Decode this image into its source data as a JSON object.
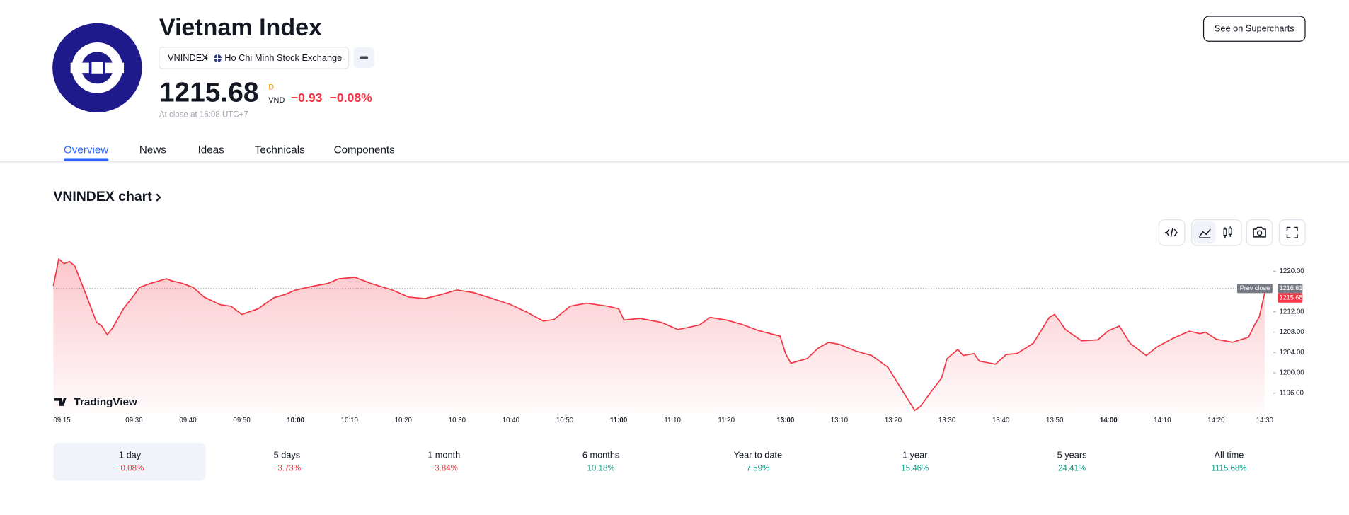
{
  "header": {
    "title": "Vietnam Index",
    "symbol": "VNINDEX",
    "exchange": "Ho Chi Minh Stock Exchange",
    "price": 1215.68,
    "interval": "D",
    "currency": "VND",
    "change": "−0.93",
    "change_percent": "−0.08%",
    "status": "At close at 16:08 UTC+7",
    "button": "See on Supercharts"
  },
  "tabs": [
    "Overview",
    "News",
    "Ideas",
    "Technicals",
    "Components"
  ],
  "chart_heading": "VNINDEX chart",
  "brand": "TradingView",
  "chart_data": {
    "type": "line",
    "color": "#f23645",
    "x": [
      0,
      1,
      2,
      3,
      4,
      6,
      8,
      9,
      10,
      11,
      13,
      15,
      16,
      18,
      21,
      22,
      24,
      26,
      28,
      31,
      33,
      35,
      38,
      41,
      43,
      45,
      48,
      51,
      53,
      56,
      59,
      63,
      66,
      69,
      72,
      75,
      78,
      81,
      85,
      88,
      91,
      93,
      96,
      99,
      103,
      105,
      106,
      109,
      113,
      116,
      120,
      122,
      125,
      128,
      131,
      135,
      136,
      137,
      140,
      142,
      144,
      146,
      149,
      152,
      155,
      158,
      160,
      161,
      163,
      165,
      166,
      168,
      169,
      171,
      172,
      175,
      177,
      179,
      182,
      185,
      186,
      188,
      191,
      194,
      196,
      198,
      200,
      203,
      205,
      208,
      211,
      213,
      214,
      216,
      219,
      222,
      223,
      224,
      225
    ],
    "values": [
      1217.1,
      1222.4,
      1221.5,
      1221.9,
      1221.0,
      1215.6,
      1210.0,
      1209.2,
      1207.5,
      1208.8,
      1212.6,
      1215.3,
      1216.8,
      1217.6,
      1218.5,
      1218.1,
      1217.6,
      1216.8,
      1214.9,
      1213.4,
      1213.1,
      1211.5,
      1212.6,
      1214.8,
      1215.4,
      1216.3,
      1217.0,
      1217.6,
      1218.5,
      1218.8,
      1217.6,
      1216.3,
      1214.9,
      1214.6,
      1215.4,
      1216.3,
      1215.8,
      1214.8,
      1213.4,
      1211.9,
      1210.2,
      1210.5,
      1213.1,
      1213.7,
      1213.1,
      1212.6,
      1210.4,
      1210.7,
      1209.9,
      1208.5,
      1209.4,
      1210.9,
      1210.4,
      1209.5,
      1208.3,
      1207.2,
      1203.8,
      1201.9,
      1202.8,
      1204.8,
      1206.0,
      1205.6,
      1204.3,
      1203.4,
      1201.1,
      1196.0,
      1192.6,
      1193.3,
      1196.2,
      1199.0,
      1202.8,
      1204.6,
      1203.4,
      1203.8,
      1202.3,
      1201.7,
      1203.6,
      1203.8,
      1205.8,
      1210.9,
      1211.5,
      1208.5,
      1206.3,
      1206.5,
      1208.3,
      1209.2,
      1205.8,
      1203.4,
      1205.1,
      1206.8,
      1208.2,
      1207.7,
      1208.0,
      1206.6,
      1206.0,
      1207.0,
      1209.2,
      1211.0,
      1215.68
    ],
    "xlim": [
      0,
      225
    ],
    "xticks": [
      {
        "value": 0,
        "label": "09:15"
      },
      {
        "value": 15,
        "label": "09:30"
      },
      {
        "value": 25,
        "label": "09:40"
      },
      {
        "value": 35,
        "label": "09:50"
      },
      {
        "value": 45,
        "label": "10:00"
      },
      {
        "value": 55,
        "label": "10:10"
      },
      {
        "value": 65,
        "label": "10:20"
      },
      {
        "value": 75,
        "label": "10:30"
      },
      {
        "value": 85,
        "label": "10:40"
      },
      {
        "value": 95,
        "label": "10:50"
      },
      {
        "value": 105,
        "label": "11:00"
      },
      {
        "value": 115,
        "label": "11:10"
      },
      {
        "value": 125,
        "label": "11:20"
      },
      {
        "value": 136,
        "label": "13:00"
      },
      {
        "value": 146,
        "label": "13:10"
      },
      {
        "value": 156,
        "label": "13:20"
      },
      {
        "value": 166,
        "label": "13:30"
      },
      {
        "value": 176,
        "label": "13:40"
      },
      {
        "value": 186,
        "label": "13:50"
      },
      {
        "value": 196,
        "label": "14:00"
      },
      {
        "value": 206,
        "label": "14:10"
      },
      {
        "value": 216,
        "label": "14:20"
      },
      {
        "value": 225,
        "label": "14:30"
      }
    ],
    "ylim": [
      1192,
      1223
    ],
    "yticks": [
      {
        "value": 1196,
        "label": "1196.00"
      },
      {
        "value": 1200,
        "label": "1200.00"
      },
      {
        "value": 1204,
        "label": "1204.00"
      },
      {
        "value": 1208,
        "label": "1208.00"
      },
      {
        "value": 1212,
        "label": "1212.00"
      },
      {
        "value": 1220,
        "label": "1220.00"
      }
    ],
    "prev_close": {
      "label": "Prev close",
      "value": 1216.61
    }
  },
  "periods": [
    {
      "label": "1 day",
      "change": "−0.08%"
    },
    {
      "label": "5 days",
      "change": "−3.73%"
    },
    {
      "label": "1 month",
      "change": "−3.84%"
    },
    {
      "label": "6 months",
      "change": "10.18%"
    },
    {
      "label": "Year to date",
      "change": "7.59%"
    },
    {
      "label": "1 year",
      "change": "15.46%"
    },
    {
      "label": "5 years",
      "change": "24.41%"
    },
    {
      "label": "All time",
      "change": "1115.68%"
    }
  ]
}
